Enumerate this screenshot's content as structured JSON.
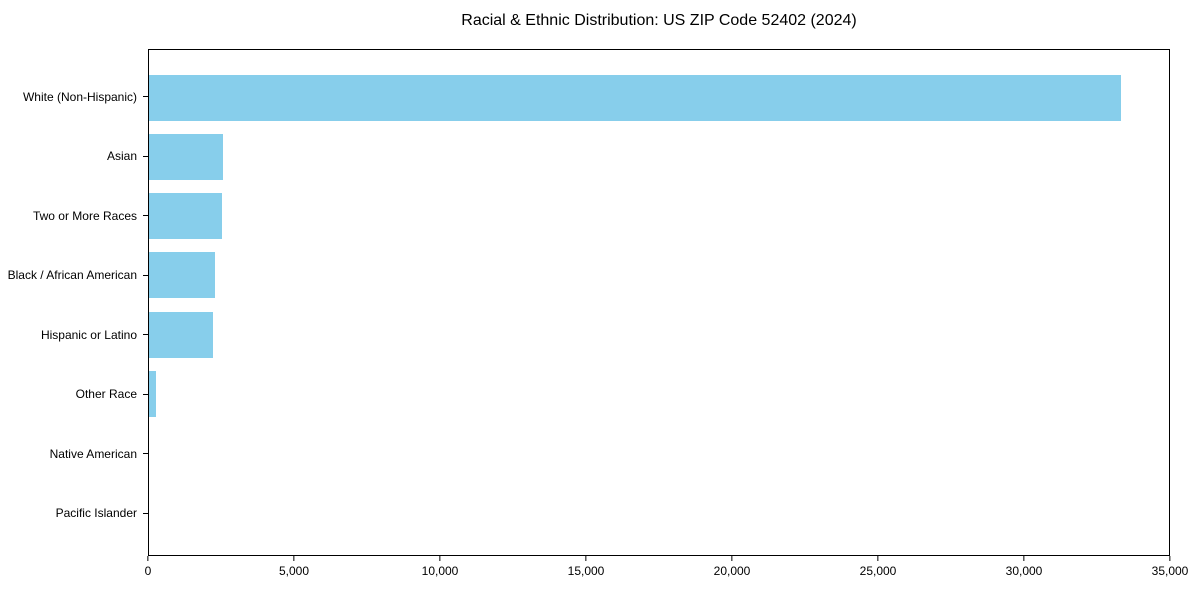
{
  "chart_data": {
    "type": "bar",
    "orientation": "horizontal",
    "title": "Racial & Ethnic Distribution: US ZIP Code 52402 (2024)",
    "categories": [
      "White (Non-Hispanic)",
      "Asian",
      "Two or More Races",
      "Black / African American",
      "Hispanic or Latino",
      "Other Race",
      "Native American",
      "Pacific Islander"
    ],
    "values": [
      33350,
      2550,
      2500,
      2250,
      2200,
      250,
      0,
      0
    ],
    "xlabel": "",
    "ylabel": "",
    "xlim": [
      0,
      35000
    ],
    "x_ticks": [
      0,
      5000,
      10000,
      15000,
      20000,
      25000,
      30000,
      35000
    ],
    "x_tick_labels": [
      "0",
      "5,000",
      "10,000",
      "15,000",
      "20,000",
      "25,000",
      "30,000",
      "35,000"
    ],
    "bar_color": "#87CEEB",
    "axis_color": "#000000",
    "text_color": "#000000",
    "background_color": "#ffffff",
    "grid": false,
    "legend": false
  }
}
